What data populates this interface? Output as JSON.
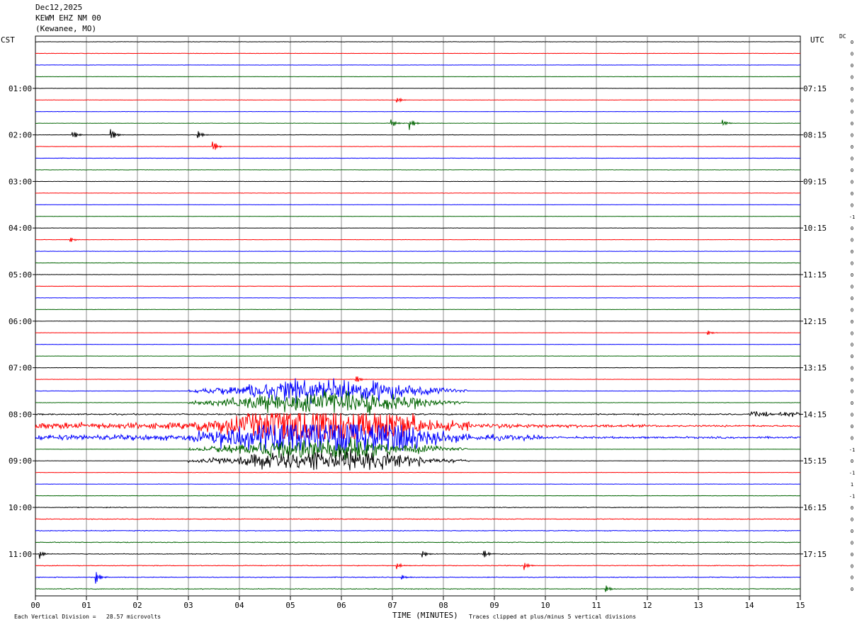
{
  "header": {
    "date": "Dec12,2025",
    "station": "KEWM EHZ NM 00",
    "location": "(Kewanee, MO)"
  },
  "labels": {
    "left_zone": "CST",
    "right_zone": "UTC",
    "dc": "DC",
    "x_axis_title": "TIME (MINUTES)",
    "scale_note": "Each Vertical Division =   28.57 microvolts",
    "clip_note": "Traces clipped at plus/minus 5 vertical divisions"
  },
  "chart_data": {
    "type": "line",
    "title": "",
    "xlabel": "TIME (MINUTES)",
    "ylabel": "",
    "xlim": [
      0,
      15
    ],
    "x_ticks": [
      "00",
      "01",
      "02",
      "03",
      "04",
      "05",
      "06",
      "07",
      "08",
      "09",
      "10",
      "11",
      "12",
      "13",
      "14",
      "15"
    ],
    "grid": true,
    "trace_minutes": 15,
    "trace_count": 48,
    "trace_colors": [
      "#000000",
      "#ff0000",
      "#0000ff",
      "#006400"
    ],
    "left_hour_labels": [
      "01:00",
      "02:00",
      "03:00",
      "04:00",
      "05:00",
      "06:00",
      "07:00",
      "08:00",
      "09:00",
      "10:00",
      "11:00"
    ],
    "right_hour_labels": [
      "07:15",
      "08:15",
      "09:15",
      "10:15",
      "11:15",
      "12:15",
      "13:15",
      "14:15",
      "15:15",
      "16:15",
      "17:15"
    ],
    "dc_offsets": [
      "0",
      "0",
      "0",
      "0",
      "0",
      "0",
      "0",
      "0",
      "0",
      "0",
      "0",
      "0",
      "0",
      "0",
      "0",
      "-1",
      "0",
      "0",
      "0",
      "0",
      "0",
      "0",
      "0",
      "0",
      "0",
      "0",
      "0",
      "0",
      "0",
      "0",
      "0",
      "0",
      "0",
      "0",
      "0",
      "-1",
      "0",
      "-1",
      "1",
      "-1",
      "0",
      "0",
      "0",
      "0",
      "0",
      "0",
      "0",
      "0"
    ],
    "events": [
      {
        "trace": 5,
        "minute": 7.1,
        "amp": 0.5
      },
      {
        "trace": 7,
        "minute": 7.0,
        "amp": 0.6
      },
      {
        "trace": 7,
        "minute": 7.35,
        "amp": 0.9
      },
      {
        "trace": 7,
        "minute": 13.5,
        "amp": 0.5
      },
      {
        "trace": 8,
        "minute": 0.75,
        "amp": 0.7
      },
      {
        "trace": 8,
        "minute": 1.5,
        "amp": 1.0
      },
      {
        "trace": 8,
        "minute": 3.2,
        "amp": 0.6
      },
      {
        "trace": 9,
        "minute": 3.5,
        "amp": 0.7
      },
      {
        "trace": 17,
        "minute": 0.7,
        "amp": 0.3
      },
      {
        "trace": 25,
        "minute": 13.2,
        "amp": 0.3
      },
      {
        "trace": 29,
        "minute": 6.3,
        "amp": 0.6
      },
      {
        "trace": 44,
        "minute": 0.1,
        "amp": 0.7
      },
      {
        "trace": 44,
        "minute": 7.6,
        "amp": 0.6
      },
      {
        "trace": 44,
        "minute": 8.8,
        "amp": 0.6
      },
      {
        "trace": 45,
        "minute": 7.1,
        "amp": 0.5
      },
      {
        "trace": 45,
        "minute": 9.6,
        "amp": 0.6
      },
      {
        "trace": 46,
        "minute": 1.2,
        "amp": 0.9
      },
      {
        "trace": 46,
        "minute": 7.2,
        "amp": 0.4
      },
      {
        "trace": 47,
        "minute": 11.2,
        "amp": 0.5
      }
    ],
    "quake_window": {
      "start_minute": 3.0,
      "peak_minute": 5.7,
      "end_minute": 8.5
    }
  }
}
